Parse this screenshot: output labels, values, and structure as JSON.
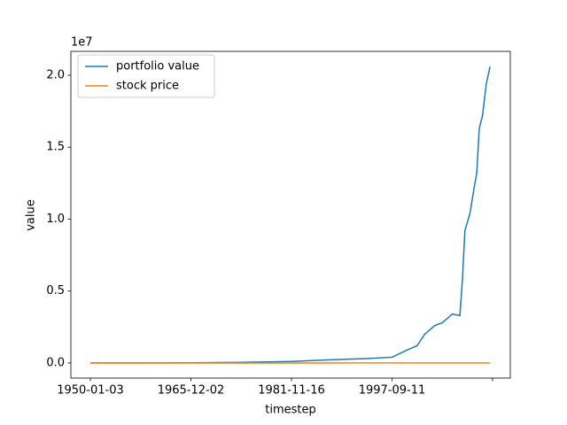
{
  "chart_data": {
    "type": "line",
    "xlabel": "timestep",
    "ylabel": "value",
    "y_offset_label": "1e7",
    "x": [
      0,
      2000,
      4000,
      6000,
      8000,
      9000,
      10000,
      11000,
      12000,
      12600,
      13000,
      13300,
      13700,
      14000,
      14400,
      14700,
      14800,
      14900,
      15100,
      15250,
      15370,
      15470,
      15600,
      15750,
      15900
    ],
    "series": [
      {
        "name": "portfolio value",
        "color": "#1f77b4",
        "values": [
          1000,
          5000,
          15000,
          40000,
          100000,
          180000,
          250000,
          300000,
          400000,
          900000,
          1200000,
          2000000,
          2600000,
          2800000,
          3400000,
          3300000,
          5800000,
          9200000,
          10400000,
          12000000,
          13200000,
          16300000,
          17200000,
          19400000,
          20600000
        ]
      },
      {
        "name": "stock price",
        "color": "#ff7f0e",
        "values": [
          17,
          55,
          90,
          100,
          120,
          240,
          300,
          420,
          950,
          1200,
          1400,
          1100,
          900,
          1250,
          1450,
          900,
          1100,
          1200,
          1400,
          1800,
          2000,
          2500,
          2800,
          3200,
          4500
        ]
      }
    ],
    "xlim": [
      -775,
      16705
    ],
    "xticks": [
      {
        "value": 0,
        "label": "1950-01-03"
      },
      {
        "value": 4000,
        "label": "1965-12-02"
      },
      {
        "value": 8000,
        "label": "1981-11-16"
      },
      {
        "value": 12000,
        "label": "1997-09-11"
      },
      {
        "value": 16000,
        "label": null
      }
    ],
    "ylim": [
      -1050000,
      21660000
    ],
    "yticks": [
      {
        "value": 0,
        "label": "0.0"
      },
      {
        "value": 5000000,
        "label": "0.5"
      },
      {
        "value": 10000000,
        "label": "1.0"
      },
      {
        "value": 15000000,
        "label": "1.5"
      },
      {
        "value": 20000000,
        "label": "2.0"
      }
    ],
    "legend": "upper left",
    "grid": false
  }
}
